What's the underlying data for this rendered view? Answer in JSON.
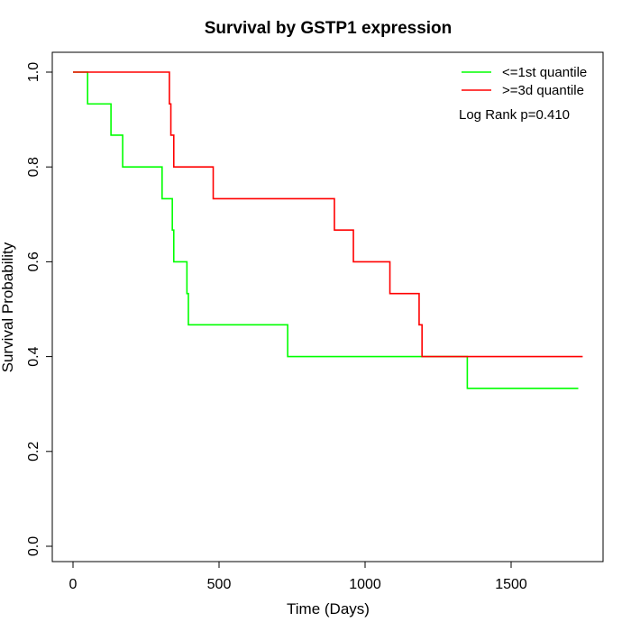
{
  "chart_data": {
    "type": "line",
    "title": "Survival by GSTP1 expression",
    "xlabel": "Time (Days)",
    "ylabel": "Survival Probability",
    "xlim": [
      0,
      1750
    ],
    "ylim": [
      0,
      1
    ],
    "x_ticks": [
      0,
      500,
      1000,
      1500
    ],
    "x_tick_labels": [
      "0",
      "500",
      "1000",
      "1500"
    ],
    "y_ticks": [
      0,
      0.2,
      0.4,
      0.6,
      0.8,
      1.0
    ],
    "y_tick_labels": [
      "0.0",
      "0.2",
      "0.4",
      "0.6",
      "0.8",
      "1.0"
    ],
    "grid": false,
    "legend_position": "top-right",
    "annotation": "Log Rank p=0.410",
    "series": [
      {
        "name": "<=1st quantile",
        "color": "#00ff00",
        "step": true,
        "x": [
          0,
          50,
          130,
          170,
          305,
          340,
          345,
          390,
          395,
          735,
          1350,
          1730
        ],
        "y": [
          1.0,
          0.933,
          0.867,
          0.8,
          0.733,
          0.667,
          0.6,
          0.533,
          0.467,
          0.4,
          0.333,
          0.333
        ]
      },
      {
        "name": ">=3d quantile",
        "color": "#ff0000",
        "step": true,
        "x": [
          0,
          330,
          335,
          345,
          480,
          895,
          960,
          1085,
          1185,
          1195,
          1745
        ],
        "y": [
          1.0,
          0.933,
          0.867,
          0.8,
          0.733,
          0.667,
          0.6,
          0.533,
          0.467,
          0.4,
          0.4
        ]
      }
    ]
  }
}
